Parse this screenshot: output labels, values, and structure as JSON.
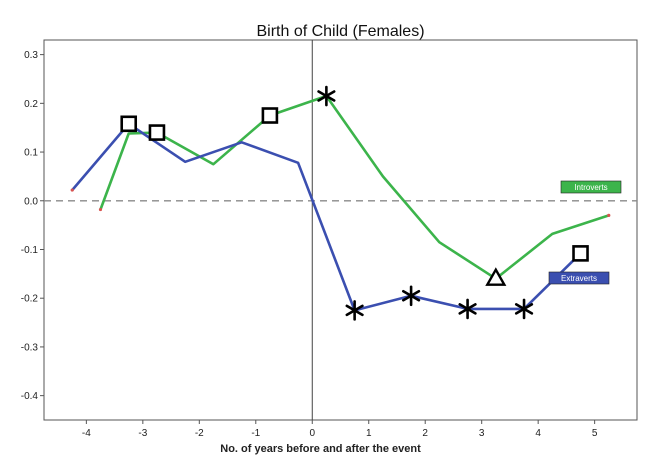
{
  "chart_data": {
    "type": "line",
    "title": "Birth of Child (Females)",
    "xlabel": "No. of years before and after the event",
    "ylabel": "",
    "xlim": [
      -4.75,
      5.75
    ],
    "ylim": [
      -0.45,
      0.33
    ],
    "xticks": [
      -4,
      -3,
      -2,
      -1,
      0,
      1,
      2,
      3,
      4,
      5
    ],
    "yticks": [
      0.3,
      0.2,
      0.1,
      0.0,
      -0.1,
      -0.2,
      -0.3,
      -0.4
    ],
    "ytick_labels": [
      "0.3",
      "0.2",
      "0.1",
      "0.0",
      "-0.1",
      "-0.2",
      "-0.3",
      "-0.4"
    ],
    "reference_lines": {
      "horizontal_dashed_y": 0.0,
      "vertical_solid_x": 0.0
    },
    "grid": false,
    "series": [
      {
        "name": "Introverts",
        "color": "#3cb44b",
        "legend_position": "right",
        "points": [
          {
            "x": -3.75,
            "y": -0.018,
            "marker": "none"
          },
          {
            "x": -3.25,
            "y": 0.138,
            "marker": "none"
          },
          {
            "x": -2.75,
            "y": 0.14,
            "marker": "square"
          },
          {
            "x": -1.75,
            "y": 0.075,
            "marker": "none"
          },
          {
            "x": -0.75,
            "y": 0.175,
            "marker": "square"
          },
          {
            "x": 0.25,
            "y": 0.215,
            "marker": "star"
          },
          {
            "x": 1.25,
            "y": 0.05,
            "marker": "none"
          },
          {
            "x": 2.25,
            "y": -0.085,
            "marker": "none"
          },
          {
            "x": 3.25,
            "y": -0.16,
            "marker": "triangle"
          },
          {
            "x": 4.25,
            "y": -0.068,
            "marker": "none"
          },
          {
            "x": 5.25,
            "y": -0.03,
            "marker": "none"
          }
        ]
      },
      {
        "name": "Extraverts",
        "color": "#3b4fb0",
        "legend_position": "right",
        "points": [
          {
            "x": -4.25,
            "y": 0.022,
            "marker": "none"
          },
          {
            "x": -3.25,
            "y": 0.158,
            "marker": "square"
          },
          {
            "x": -2.25,
            "y": 0.08,
            "marker": "none"
          },
          {
            "x": -1.25,
            "y": 0.12,
            "marker": "none"
          },
          {
            "x": -0.25,
            "y": 0.078,
            "marker": "none"
          },
          {
            "x": 0.75,
            "y": -0.225,
            "marker": "star"
          },
          {
            "x": 1.75,
            "y": -0.195,
            "marker": "star"
          },
          {
            "x": 2.75,
            "y": -0.222,
            "marker": "star"
          },
          {
            "x": 3.75,
            "y": -0.222,
            "marker": "star"
          },
          {
            "x": 4.75,
            "y": -0.108,
            "marker": "square"
          }
        ]
      }
    ]
  }
}
